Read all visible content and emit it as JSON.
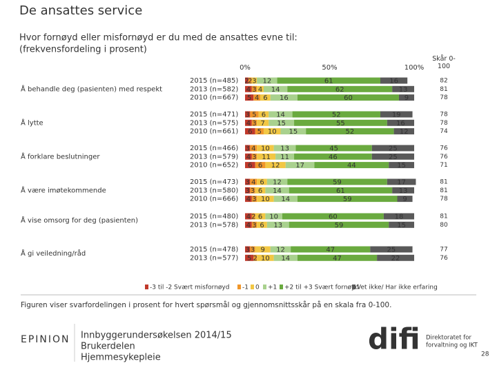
{
  "chart_data": {
    "type": "stacked-bar",
    "title": "De ansattes service",
    "subtitle": [
      "Hvor fornøyd eller misfornøyd er du med de ansattes evne til:",
      "(frekvensfordeling i prosent)"
    ],
    "xlim": [
      0,
      100
    ],
    "xticks": [
      {
        "value": 0,
        "label": "0%"
      },
      {
        "value": 50,
        "label": "50%"
      },
      {
        "value": 100,
        "label": "100%"
      }
    ],
    "score_header": "Skår 0-100",
    "series": [
      {
        "name": "-3 til -2 Svært misfornøyd",
        "color": "#c0392b"
      },
      {
        "name": "-1",
        "color": "#f0962a"
      },
      {
        "name": "0",
        "color": "#f2c744"
      },
      {
        "name": "+1",
        "color": "#a9d18e"
      },
      {
        "name": "+2 til +3 Svært fornøyd",
        "color": "#6aaa3f"
      },
      {
        "name": "Vet ikke/ Har ikke erfaring",
        "color": "#595959"
      }
    ],
    "groups": [
      {
        "label": "Å behandle deg (pasienten) med respekt",
        "rows": [
          {
            "label": "2015 (n=485)",
            "values": [
              2,
              2,
              3,
              12,
              61,
              16
            ],
            "score": 82
          },
          {
            "label": "2013 (n=582)",
            "values": [
              4,
              3,
              4,
              14,
              62,
              13
            ],
            "score": 81
          },
          {
            "label": "2010 (n=667)",
            "values": [
              5,
              4,
              6,
              16,
              60,
              9
            ],
            "score": 78
          }
        ]
      },
      {
        "label": "Å lytte",
        "rows": [
          {
            "label": "2015 (n=471)",
            "values": [
              3,
              5,
              6,
              14,
              52,
              19
            ],
            "score": 78
          },
          {
            "label": "2013 (n=575)",
            "values": [
              4,
              3,
              7,
              15,
              55,
              16
            ],
            "score": 78
          },
          {
            "label": "2010 (n=661)",
            "values": [
              6,
              5,
              10,
              15,
              52,
              12
            ],
            "score": 74
          }
        ]
      },
      {
        "label": "Å forklare beslutninger",
        "rows": [
          {
            "label": "2015 (n=466)",
            "values": [
              3,
              4,
              10,
              13,
              45,
              25
            ],
            "score": 76
          },
          {
            "label": "2013 (n=579)",
            "values": [
              4,
              3,
              11,
              11,
              46,
              25
            ],
            "score": 76
          },
          {
            "label": "2010 (n=652)",
            "values": [
              6,
              6,
              12,
              17,
              44,
              15
            ],
            "score": 71
          }
        ]
      },
      {
        "label": "Å være imøtekommende",
        "rows": [
          {
            "label": "2015 (n=473)",
            "values": [
              3,
              4,
              6,
              12,
              59,
              17
            ],
            "score": 81
          },
          {
            "label": "2013 (n=580)",
            "values": [
              3,
              3,
              6,
              14,
              61,
              13
            ],
            "score": 81
          },
          {
            "label": "2010 (n=666)",
            "values": [
              4,
              3,
              10,
              14,
              59,
              9
            ],
            "score": 78
          }
        ]
      },
      {
        "label": "Å vise omsorg for deg (pasienten)",
        "rows": [
          {
            "label": "2015 (n=480)",
            "values": [
              4,
              2,
              6,
              10,
              60,
              18
            ],
            "score": 81
          },
          {
            "label": "2013 (n=578)",
            "values": [
              4,
              3,
              6,
              13,
              59,
              15
            ],
            "score": 80
          }
        ]
      },
      {
        "label": "Å gi veiledning/råd",
        "rows": [
          {
            "label": "2015 (n=478)",
            "values": [
              3,
              3,
              9,
              12,
              47,
              25
            ],
            "score": 77
          },
          {
            "label": "2013 (n=577)",
            "values": [
              5,
              2,
              10,
              14,
              47,
              22
            ],
            "score": 76
          }
        ]
      }
    ]
  },
  "footer": {
    "caption": "Figuren viser svarfordelingen i prosent for hvert spørsmål og gjennomsnittsskår på en skala fra 0-100.",
    "brand": "EPINION",
    "report": [
      "Innbyggerundersøkelsen 2014/15",
      "Brukerdelen",
      "Hjemmesykepleie"
    ],
    "logo": "difi",
    "logo_text": [
      "Direktoratet for",
      "forvaltning og IKT"
    ],
    "page": "28"
  }
}
